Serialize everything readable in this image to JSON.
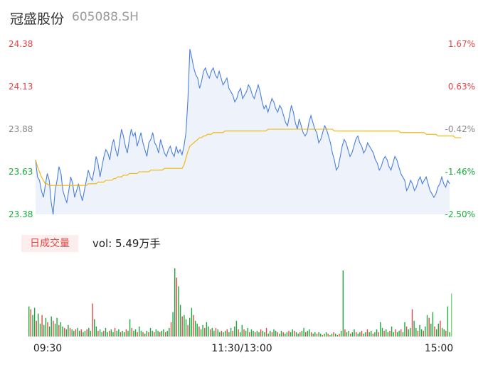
{
  "header": {
    "name": "冠盛股份",
    "code": "605088.SH"
  },
  "volume_panel": {
    "tab_label": "日成交量",
    "vol_text": "vol: 5.49万手"
  },
  "colors": {
    "up": "#e64545",
    "down": "#1aab3a",
    "neutral": "#888888",
    "price_line": "#4a7fe0",
    "avg_line": "#f0b400",
    "area": "#eef3fb"
  },
  "chart_data": [
    {
      "type": "line",
      "y_ticks_price": [
        "24.38",
        "24.13",
        "23.88",
        "23.63",
        "23.38"
      ],
      "y_ticks_pct": [
        "1.67%",
        "0.63%",
        "-0.42%",
        "-1.46%",
        "-2.50%"
      ],
      "ylim": [
        23.38,
        24.38
      ],
      "x_labels": [
        "09:30",
        "11:30/13:00",
        "15:00"
      ],
      "series": [
        {
          "values": [
            23.7,
            23.6,
            23.58,
            23.52,
            23.48,
            23.55,
            23.62,
            23.58,
            23.45,
            23.38,
            23.52,
            23.58,
            23.66,
            23.62,
            23.52,
            23.48,
            23.45,
            23.52,
            23.6,
            23.56,
            23.48,
            23.52,
            23.56,
            23.5,
            23.46,
            23.52,
            23.58,
            23.64,
            23.6,
            23.58,
            23.64,
            23.72,
            23.68,
            23.6,
            23.66,
            23.72,
            23.76,
            23.74,
            23.7,
            23.78,
            23.82,
            23.76,
            23.72,
            23.8,
            23.88,
            23.84,
            23.78,
            23.74,
            23.82,
            23.88,
            23.84,
            23.86,
            23.78,
            23.82,
            23.86,
            23.8,
            23.76,
            23.72,
            23.8,
            23.82,
            23.86,
            23.8,
            23.78,
            23.74,
            23.82,
            23.78,
            23.74,
            23.72,
            23.76,
            23.78,
            23.74,
            23.72,
            23.78,
            23.74,
            23.76,
            23.73,
            23.78,
            23.86,
            24.05,
            24.35,
            24.3,
            24.24,
            24.2,
            24.18,
            24.12,
            24.16,
            24.22,
            24.24,
            24.2,
            24.18,
            24.22,
            24.24,
            24.2,
            24.18,
            24.22,
            24.18,
            24.14,
            24.16,
            24.18,
            24.12,
            24.1,
            24.08,
            24.04,
            24.06,
            24.1,
            24.12,
            24.06,
            24.08,
            24.1,
            24.14,
            24.12,
            24.08,
            24.06,
            24.1,
            24.14,
            24.1,
            24.04,
            24.0,
            24.02,
            23.98,
            24.02,
            24.06,
            24.04,
            24.0,
            23.98,
            24.02,
            24.0,
            23.96,
            23.92,
            23.9,
            23.96,
            24.02,
            23.98,
            23.92,
            23.88,
            23.94,
            23.9,
            23.86,
            23.84,
            23.86,
            23.92,
            23.96,
            23.92,
            23.88,
            23.86,
            23.8,
            23.82,
            23.86,
            23.9,
            23.88,
            23.84,
            23.8,
            23.74,
            23.7,
            23.64,
            23.66,
            23.72,
            23.78,
            23.82,
            23.8,
            23.76,
            23.72,
            23.74,
            23.78,
            23.82,
            23.84,
            23.8,
            23.78,
            23.74,
            23.76,
            23.8,
            23.78,
            23.76,
            23.74,
            23.7,
            23.68,
            23.64,
            23.66,
            23.7,
            23.72,
            23.7,
            23.66,
            23.64,
            23.68,
            23.72,
            23.7,
            23.66,
            23.62,
            23.6,
            23.58,
            23.52,
            23.54,
            23.58,
            23.56,
            23.52,
            23.54,
            23.58,
            23.6,
            23.56,
            23.58,
            23.6,
            23.56,
            23.52,
            23.5,
            23.48,
            23.5,
            23.54,
            23.56,
            23.6,
            23.56,
            23.54,
            23.58,
            23.56
          ]
        },
        {
          "values": [
            23.7,
            23.66,
            23.63,
            23.6,
            23.58,
            23.56,
            23.56,
            23.55,
            23.55,
            23.55,
            23.55,
            23.55,
            23.55,
            23.55,
            23.55,
            23.55,
            23.55,
            23.55,
            23.55,
            23.55,
            23.55,
            23.55,
            23.55,
            23.55,
            23.55,
            23.55,
            23.55,
            23.56,
            23.56,
            23.56,
            23.56,
            23.56,
            23.57,
            23.57,
            23.57,
            23.57,
            23.58,
            23.58,
            23.58,
            23.58,
            23.59,
            23.59,
            23.6,
            23.6,
            23.6,
            23.61,
            23.61,
            23.61,
            23.62,
            23.62,
            23.62,
            23.62,
            23.62,
            23.63,
            23.63,
            23.63,
            23.63,
            23.63,
            23.63,
            23.64,
            23.64,
            23.64,
            23.64,
            23.64,
            23.64,
            23.64,
            23.65,
            23.65,
            23.65,
            23.65,
            23.65,
            23.65,
            23.65,
            23.65,
            23.65,
            23.65,
            23.67,
            23.71,
            23.75,
            23.78,
            23.79,
            23.8,
            23.81,
            23.82,
            23.83,
            23.83,
            23.84,
            23.84,
            23.85,
            23.85,
            23.85,
            23.86,
            23.86,
            23.86,
            23.86,
            23.86,
            23.86,
            23.87,
            23.87,
            23.87,
            23.87,
            23.87,
            23.87,
            23.87,
            23.87,
            23.87,
            23.87,
            23.87,
            23.87,
            23.87,
            23.87,
            23.87,
            23.87,
            23.87,
            23.87,
            23.87,
            23.87,
            23.87,
            23.87,
            23.88,
            23.88,
            23.88,
            23.88,
            23.88,
            23.88,
            23.88,
            23.88,
            23.88,
            23.88,
            23.88,
            23.88,
            23.88,
            23.88,
            23.88,
            23.88,
            23.88,
            23.88,
            23.88,
            23.88,
            23.88,
            23.88,
            23.88,
            23.88,
            23.88,
            23.88,
            23.88,
            23.88,
            23.88,
            23.88,
            23.88,
            23.88,
            23.88,
            23.88,
            23.87,
            23.87,
            23.87,
            23.87,
            23.87,
            23.87,
            23.87,
            23.87,
            23.87,
            23.87,
            23.87,
            23.87,
            23.87,
            23.87,
            23.87,
            23.87,
            23.87,
            23.87,
            23.87,
            23.87,
            23.87,
            23.87,
            23.87,
            23.87,
            23.87,
            23.87,
            23.87,
            23.87,
            23.87,
            23.87,
            23.87,
            23.87,
            23.87,
            23.87,
            23.86,
            23.86,
            23.86,
            23.86,
            23.86,
            23.86,
            23.86,
            23.86,
            23.86,
            23.86,
            23.86,
            23.86,
            23.86,
            23.85,
            23.85,
            23.85,
            23.85,
            23.85,
            23.85,
            23.84,
            23.84,
            23.84,
            23.84,
            23.84,
            23.84,
            23.84,
            23.84,
            23.84,
            23.83,
            23.83,
            23.83,
            23.83
          ]
        }
      ]
    },
    {
      "type": "bar",
      "series": [
        {
          "values": [
            0.42,
            0.38,
            0.3,
            0.4,
            0.22,
            0.32,
            0.18,
            0.3,
            0.16,
            0.26,
            0.2,
            0.14,
            0.28,
            0.22,
            0.18,
            0.26,
            0.16,
            0.2,
            0.14,
            0.12,
            0.1,
            0.16,
            0.12,
            0.1,
            0.08,
            0.1,
            0.12,
            0.08,
            0.1,
            0.06,
            0.08,
            0.1,
            0.12,
            0.08,
            0.46,
            0.24,
            0.14,
            0.08,
            0.1,
            0.06,
            0.08,
            0.12,
            0.06,
            0.08,
            0.1,
            0.06,
            0.12,
            0.08,
            0.1,
            0.06,
            0.08,
            0.06,
            0.1,
            0.08,
            0.24,
            0.12,
            0.08,
            0.1,
            0.06,
            0.14,
            0.08,
            0.06,
            0.04,
            0.08,
            0.06,
            0.12,
            0.08,
            0.06,
            0.1,
            0.08,
            0.06,
            0.08,
            0.1,
            0.06,
            0.08,
            0.12,
            0.2,
            0.34,
            0.95,
            0.82,
            0.7,
            0.44,
            0.28,
            0.3,
            0.24,
            0.16,
            0.26,
            0.4,
            0.3,
            0.22,
            0.18,
            0.14,
            0.1,
            0.16,
            0.12,
            0.2,
            0.14,
            0.1,
            0.12,
            0.08,
            0.12,
            0.1,
            0.06,
            0.08,
            0.06,
            0.08,
            0.1,
            0.06,
            0.12,
            0.08,
            0.14,
            0.22,
            0.1,
            0.06,
            0.16,
            0.1,
            0.08,
            0.12,
            0.06,
            0.1,
            0.08,
            0.06,
            0.08,
            0.06,
            0.1,
            0.08,
            0.06,
            0.12,
            0.04,
            0.08,
            0.06,
            0.1,
            0.08,
            0.06,
            0.04,
            0.08,
            0.06,
            0.04,
            0.06,
            0.08,
            0.06,
            0.1,
            0.08,
            0.06,
            0.04,
            0.06,
            0.08,
            0.12,
            0.06,
            0.08,
            0.1,
            0.06,
            0.04,
            0.06,
            0.04,
            0.06,
            0.04,
            0.02,
            0.04,
            0.06,
            0.04,
            0.02,
            0.04,
            0.06,
            0.04,
            0.02,
            0.04,
            0.08,
            0.92,
            0.1,
            0.06,
            0.08,
            0.04,
            0.06,
            0.1,
            0.06,
            0.04,
            0.06,
            0.08,
            0.04,
            0.06,
            0.1,
            0.06,
            0.08,
            0.04,
            0.06,
            0.1,
            0.06,
            0.2,
            0.12,
            0.08,
            0.1,
            0.06,
            0.08,
            0.14,
            0.06,
            0.1,
            0.06,
            0.08,
            0.1,
            0.06,
            0.2,
            0.14,
            0.1,
            0.12,
            0.38,
            0.22,
            0.12,
            0.08,
            0.16,
            0.1,
            0.08,
            0.14,
            0.3,
            0.26,
            0.18,
            0.34,
            0.14,
            0.1,
            0.18,
            0.22,
            0.12,
            0.1,
            0.08,
            0.42,
            0.06,
            0.6
          ]
        }
      ]
    }
  ]
}
